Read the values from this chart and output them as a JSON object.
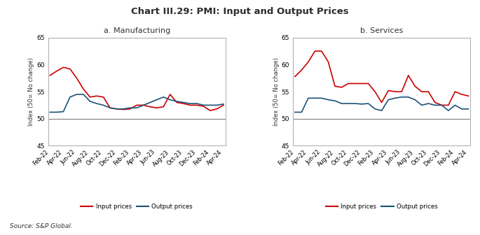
{
  "title": "Chart III.29: PMI: Input and Output Prices",
  "source": "Source: S&P Global.",
  "ylabel": "Index (50= No change)",
  "ylim": [
    45,
    65
  ],
  "yticks": [
    45,
    50,
    55,
    60,
    65
  ],
  "x_labels": [
    "Feb-22",
    "Apr-22",
    "Jun-22",
    "Aug-22",
    "Oct-22",
    "Dec-22",
    "Feb-23",
    "Apr-23",
    "Jun-23",
    "Aug-23",
    "Oct-23",
    "Dec-23",
    "Feb-24",
    "Apr-24"
  ],
  "panel_a_title": "a. Manufacturing",
  "panel_b_title": "b. Services",
  "mfg_input": [
    58.0,
    58.8,
    59.5,
    59.2,
    57.5,
    55.5,
    54.0,
    54.2,
    54.0,
    52.0,
    51.8,
    51.7,
    51.8,
    52.5,
    52.5,
    52.2,
    52.0,
    52.2,
    54.5,
    53.0,
    52.8,
    52.5,
    52.5,
    52.3,
    51.5,
    51.8,
    52.5
  ],
  "mfg_output": [
    51.2,
    51.2,
    51.3,
    54.0,
    54.5,
    54.5,
    53.2,
    52.8,
    52.5,
    52.0,
    51.8,
    51.8,
    52.0,
    52.0,
    52.5,
    53.0,
    53.5,
    54.0,
    53.5,
    53.2,
    53.0,
    52.8,
    52.8,
    52.5,
    52.5,
    52.5,
    52.7
  ],
  "svc_input": [
    57.8,
    59.0,
    60.5,
    62.5,
    62.5,
    60.5,
    56.0,
    55.8,
    56.5,
    56.5,
    56.5,
    56.5,
    55.0,
    53.0,
    55.2,
    55.0,
    55.0,
    58.0,
    56.0,
    55.0,
    55.0,
    53.0,
    52.5,
    52.5,
    55.0,
    54.5,
    54.2
  ],
  "svc_output": [
    51.2,
    51.2,
    53.8,
    53.8,
    53.8,
    53.5,
    53.3,
    52.8,
    52.8,
    52.8,
    52.7,
    52.8,
    51.8,
    51.5,
    53.5,
    53.8,
    54.0,
    54.0,
    53.5,
    52.5,
    52.8,
    52.5,
    52.5,
    51.5,
    52.5,
    51.8,
    51.8
  ],
  "input_color": "#cc0000",
  "output_color": "#1a5276",
  "line_width": 1.2,
  "hline_value": 50,
  "hline_color": "#888888"
}
